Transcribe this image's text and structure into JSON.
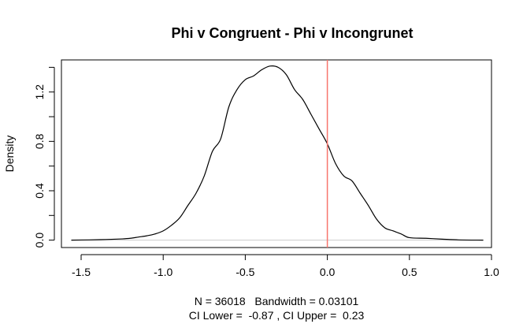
{
  "chart_data": {
    "type": "line",
    "title": "Phi v Congruent - Phi v Incongrunet",
    "xlabel_line1": "N = 36018   Bandwidth = 0.03101",
    "xlabel_line2": "CI Lower =  -0.87 , CI Upper =  0.23",
    "ylabel": "Density",
    "xlim": [
      -1.62,
      1.0
    ],
    "ylim": [
      -0.06,
      1.46
    ],
    "x_ticks": [
      -1.5,
      -1.0,
      -0.5,
      0.0,
      0.5,
      1.0
    ],
    "x_tick_labels": [
      "-1.5",
      "-1.0",
      "-0.5",
      "0.0",
      "0.5",
      "1.0"
    ],
    "y_ticks": [
      0.0,
      0.4,
      0.8,
      1.2
    ],
    "y_tick_labels": [
      "0.0",
      "0.4",
      "0.8",
      "1.2"
    ],
    "y_minor_ticks": [
      0.2,
      0.6,
      1.0,
      1.4
    ],
    "vline": {
      "x": 0.0,
      "color": "#f8766d"
    },
    "zero_line_color": "#cccccc",
    "line_color": "#000000",
    "series": [
      {
        "x": [
          -1.56,
          -1.45,
          -1.35,
          -1.25,
          -1.2,
          -1.15,
          -1.1,
          -1.05,
          -1.0,
          -0.95,
          -0.9,
          -0.85,
          -0.8,
          -0.75,
          -0.7,
          -0.65,
          -0.6,
          -0.55,
          -0.5,
          -0.45,
          -0.4,
          -0.35,
          -0.3,
          -0.25,
          -0.2,
          -0.15,
          -0.1,
          -0.05,
          0.0,
          0.05,
          0.1,
          0.15,
          0.2,
          0.25,
          0.3,
          0.35,
          0.4,
          0.45,
          0.5,
          0.6,
          0.7,
          0.8,
          0.95
        ],
        "y": [
          0.0,
          0.002,
          0.005,
          0.01,
          0.015,
          0.025,
          0.035,
          0.05,
          0.075,
          0.12,
          0.18,
          0.28,
          0.38,
          0.52,
          0.72,
          0.82,
          1.08,
          1.22,
          1.3,
          1.33,
          1.38,
          1.41,
          1.4,
          1.34,
          1.22,
          1.14,
          1.02,
          0.9,
          0.78,
          0.62,
          0.52,
          0.48,
          0.38,
          0.28,
          0.17,
          0.1,
          0.075,
          0.05,
          0.02,
          0.015,
          0.008,
          0.002,
          0.0
        ]
      }
    ]
  }
}
